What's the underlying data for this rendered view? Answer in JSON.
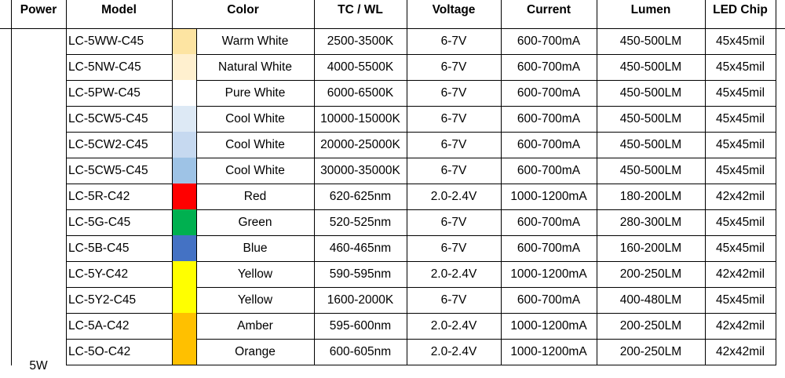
{
  "table": {
    "header": [
      "Power",
      "Model",
      "Color",
      "TC / WL",
      "Voltage",
      "Current",
      "Lumen",
      "LED Chip"
    ],
    "power": "5W",
    "swatches": [
      "#fde4a2",
      "#fff0cf",
      "#ffffff",
      "#dde9f5",
      "#c6d9f0",
      "#9ec3e6",
      "#ff0000",
      "#00b050",
      "#4472c4",
      "#ffff00",
      "#ffff00",
      "#ffc000",
      "#ffc000"
    ],
    "rows": [
      [
        "LC-5WW-C45",
        "Warm White",
        "2500-3500K",
        "6-7V",
        "600-700mA",
        "450-500LM",
        "45x45mil"
      ],
      [
        "LC-5NW-C45",
        "Natural White",
        "4000-5500K",
        "6-7V",
        "600-700mA",
        "450-500LM",
        "45x45mil"
      ],
      [
        "LC-5PW-C45",
        "Pure White",
        "6000-6500K",
        "6-7V",
        "600-700mA",
        "450-500LM",
        "45x45mil"
      ],
      [
        "LC-5CW5-C45",
        "Cool White",
        "10000-15000K",
        "6-7V",
        "600-700mA",
        "450-500LM",
        "45x45mil"
      ],
      [
        "LC-5CW2-C45",
        "Cool White",
        "20000-25000K",
        "6-7V",
        "600-700mA",
        "450-500LM",
        "45x45mil"
      ],
      [
        "LC-5CW5-C45",
        "Cool White",
        "30000-35000K",
        "6-7V",
        "600-700mA",
        "450-500LM",
        "45x45mil"
      ],
      [
        "LC-5R-C42",
        "Red",
        "620-625nm",
        "2.0-2.4V",
        "1000-1200mA",
        "180-200LM",
        "42x42mil"
      ],
      [
        "LC-5G-C45",
        "Green",
        "520-525nm",
        "6-7V",
        "600-700mA",
        "280-300LM",
        "45x45mil"
      ],
      [
        "LC-5B-C45",
        "Blue",
        "460-465nm",
        "6-7V",
        "600-700mA",
        "160-200LM",
        "45x45mil"
      ],
      [
        "LC-5Y-C42",
        "Yellow",
        "590-595nm",
        "2.0-2.4V",
        "1000-1200mA",
        "200-250LM",
        "42x42mil"
      ],
      [
        "LC-5Y2-C45",
        "Yellow",
        "1600-2000K",
        "6-7V",
        "600-700mA",
        "400-480LM",
        "45x45mil"
      ],
      [
        "LC-5A-C42",
        "Amber",
        "595-600nm",
        "2.0-2.4V",
        "1000-1200mA",
        "200-250LM",
        "42x42mil"
      ],
      [
        "LC-5O-C42",
        "Orange",
        "600-605nm",
        "2.0-2.4V",
        "1000-1200mA",
        "200-250LM",
        "42x42mil"
      ]
    ]
  }
}
